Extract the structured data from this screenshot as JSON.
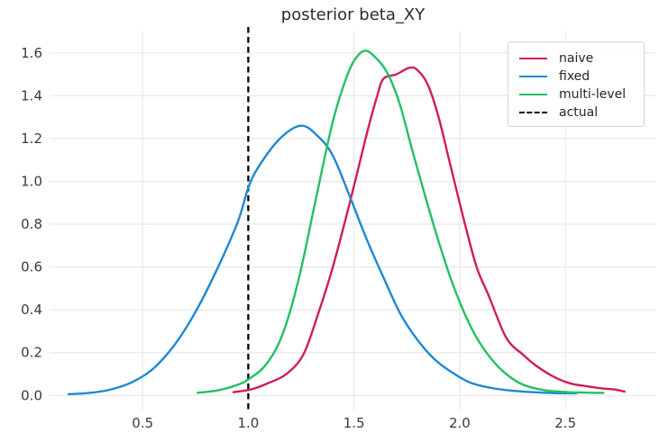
{
  "title": "posterior beta_XY",
  "legend": {
    "items": [
      {
        "label": "naive",
        "color": "#d01c5c",
        "style": "solid"
      },
      {
        "label": "fixed",
        "color": "#1e88d5",
        "style": "solid"
      },
      {
        "label": "multi-level",
        "color": "#22c161",
        "style": "solid"
      },
      {
        "label": "actual",
        "color": "#000000",
        "style": "dashed"
      }
    ]
  },
  "chart_data": {
    "type": "line",
    "title": "posterior beta_XY",
    "xlabel": "",
    "ylabel": "",
    "grid": true,
    "legend_position": "upper right",
    "xlim": [
      0.06,
      2.93
    ],
    "ylim": [
      -0.066,
      1.7
    ],
    "x_tick_values": [
      0.5,
      1.0,
      1.5,
      2.0,
      2.5
    ],
    "x_tick_labels": [
      "0.5",
      "1.0",
      "1.5",
      "2.0",
      "2.5"
    ],
    "y_tick_values": [
      0.0,
      0.2,
      0.4,
      0.6,
      0.8,
      1.0,
      1.2,
      1.4,
      1.6
    ],
    "y_tick_labels": [
      "0.0",
      "0.2",
      "0.4",
      "0.6",
      "0.8",
      "1.0",
      "1.2",
      "1.4",
      "1.6"
    ],
    "vline": {
      "x": 1.0,
      "label": "actual",
      "style": "dashed",
      "color": "#000000"
    },
    "colors": {
      "grid": "#e7e7e7",
      "tick_text": "#3a3a3a"
    },
    "series": [
      {
        "name": "naive",
        "color": "#d01c5c",
        "points": [
          [
            0.93,
            0.015
          ],
          [
            1.02,
            0.03
          ],
          [
            1.1,
            0.06
          ],
          [
            1.18,
            0.1
          ],
          [
            1.26,
            0.19
          ],
          [
            1.33,
            0.38
          ],
          [
            1.4,
            0.6
          ],
          [
            1.48,
            0.9
          ],
          [
            1.56,
            1.22
          ],
          [
            1.61,
            1.4
          ],
          [
            1.64,
            1.48
          ],
          [
            1.7,
            1.5
          ],
          [
            1.76,
            1.53
          ],
          [
            1.8,
            1.52
          ],
          [
            1.85,
            1.45
          ],
          [
            1.9,
            1.3
          ],
          [
            1.95,
            1.1
          ],
          [
            2.02,
            0.82
          ],
          [
            2.08,
            0.6
          ],
          [
            2.14,
            0.46
          ],
          [
            2.22,
            0.27
          ],
          [
            2.3,
            0.19
          ],
          [
            2.36,
            0.14
          ],
          [
            2.44,
            0.09
          ],
          [
            2.52,
            0.057
          ],
          [
            2.6,
            0.043
          ],
          [
            2.68,
            0.032
          ],
          [
            2.73,
            0.028
          ],
          [
            2.78,
            0.018
          ]
        ]
      },
      {
        "name": "fixed",
        "color": "#1e88d5",
        "points": [
          [
            0.15,
            0.006
          ],
          [
            0.25,
            0.012
          ],
          [
            0.35,
            0.028
          ],
          [
            0.45,
            0.062
          ],
          [
            0.55,
            0.125
          ],
          [
            0.65,
            0.235
          ],
          [
            0.75,
            0.39
          ],
          [
            0.85,
            0.585
          ],
          [
            0.95,
            0.81
          ],
          [
            1.0,
            0.97
          ],
          [
            1.05,
            1.07
          ],
          [
            1.15,
            1.2
          ],
          [
            1.25,
            1.26
          ],
          [
            1.33,
            1.21
          ],
          [
            1.4,
            1.12
          ],
          [
            1.48,
            0.93
          ],
          [
            1.56,
            0.73
          ],
          [
            1.64,
            0.55
          ],
          [
            1.72,
            0.38
          ],
          [
            1.8,
            0.26
          ],
          [
            1.88,
            0.17
          ],
          [
            1.96,
            0.11
          ],
          [
            2.05,
            0.06
          ],
          [
            2.15,
            0.035
          ],
          [
            2.25,
            0.022
          ],
          [
            2.35,
            0.015
          ],
          [
            2.45,
            0.011
          ],
          [
            2.55,
            0.01
          ]
        ]
      },
      {
        "name": "multi-level",
        "color": "#22c161",
        "points": [
          [
            0.76,
            0.012
          ],
          [
            0.86,
            0.025
          ],
          [
            0.95,
            0.05
          ],
          [
            1.0,
            0.075
          ],
          [
            1.08,
            0.14
          ],
          [
            1.16,
            0.28
          ],
          [
            1.24,
            0.55
          ],
          [
            1.32,
            0.92
          ],
          [
            1.4,
            1.28
          ],
          [
            1.47,
            1.5
          ],
          [
            1.52,
            1.59
          ],
          [
            1.56,
            1.61
          ],
          [
            1.6,
            1.58
          ],
          [
            1.64,
            1.535
          ],
          [
            1.68,
            1.46
          ],
          [
            1.72,
            1.35
          ],
          [
            1.78,
            1.13
          ],
          [
            1.84,
            0.92
          ],
          [
            1.9,
            0.72
          ],
          [
            1.96,
            0.54
          ],
          [
            2.02,
            0.39
          ],
          [
            2.08,
            0.27
          ],
          [
            2.15,
            0.17
          ],
          [
            2.22,
            0.1
          ],
          [
            2.3,
            0.05
          ],
          [
            2.4,
            0.025
          ],
          [
            2.5,
            0.016
          ],
          [
            2.6,
            0.013
          ],
          [
            2.68,
            0.012
          ]
        ]
      }
    ]
  }
}
